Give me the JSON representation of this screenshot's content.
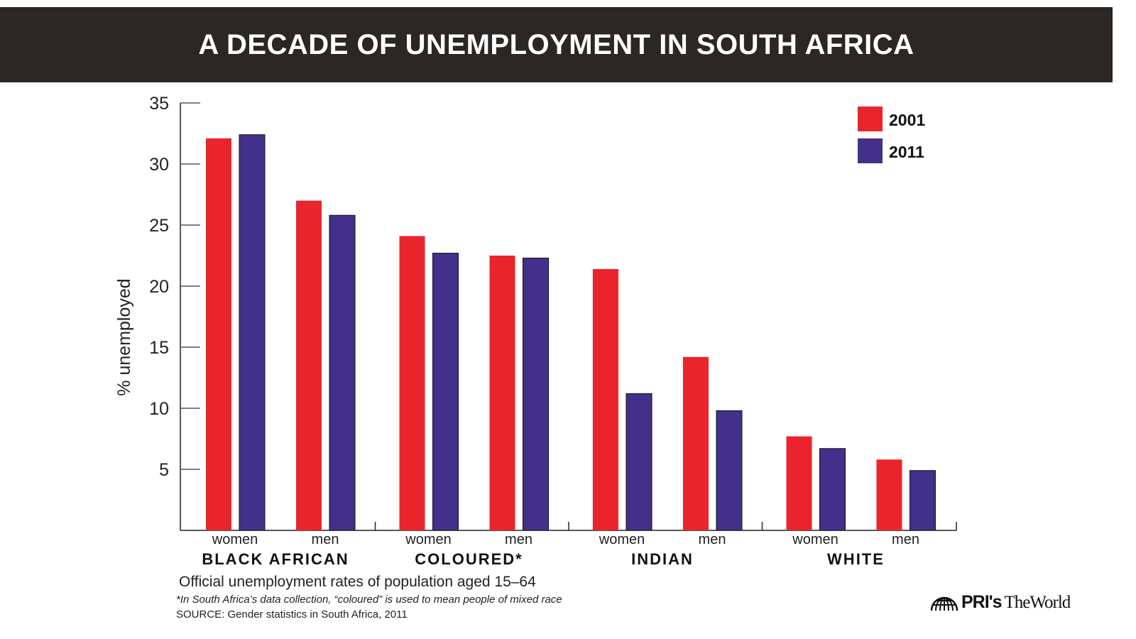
{
  "chart_data": {
    "type": "bar",
    "title": "A DECADE OF UNEMPLOYMENT IN SOUTH AFRICA",
    "ylabel": "% unemployed",
    "ylim": [
      0,
      35
    ],
    "yticks": [
      5,
      10,
      15,
      20,
      25,
      30,
      35
    ],
    "groups": [
      "BLACK AFRICAN",
      "COLOURED*",
      "INDIAN",
      "WHITE"
    ],
    "subcategories": [
      "women",
      "men"
    ],
    "series": [
      {
        "name": "2001",
        "color": "#ea242c",
        "values": [
          32.1,
          27.0,
          24.1,
          22.5,
          21.4,
          14.2,
          7.7,
          5.8
        ]
      },
      {
        "name": "2011",
        "color": "#43308a",
        "values": [
          32.4,
          25.8,
          22.7,
          22.3,
          11.2,
          9.8,
          6.7,
          4.9
        ]
      }
    ],
    "legend_placement": "top-right",
    "grid": false,
    "caption": "Official unemployment rates of population aged 15–64",
    "footnote": "*In South Africa’s data collection, “coloured” is used to mean people of mixed race",
    "source": "SOURCE: Gender statistics in South Africa, 2011"
  },
  "header_bg": "#2a2724",
  "logo": {
    "text_bold": "PRI's",
    "text": "TheWorld"
  }
}
